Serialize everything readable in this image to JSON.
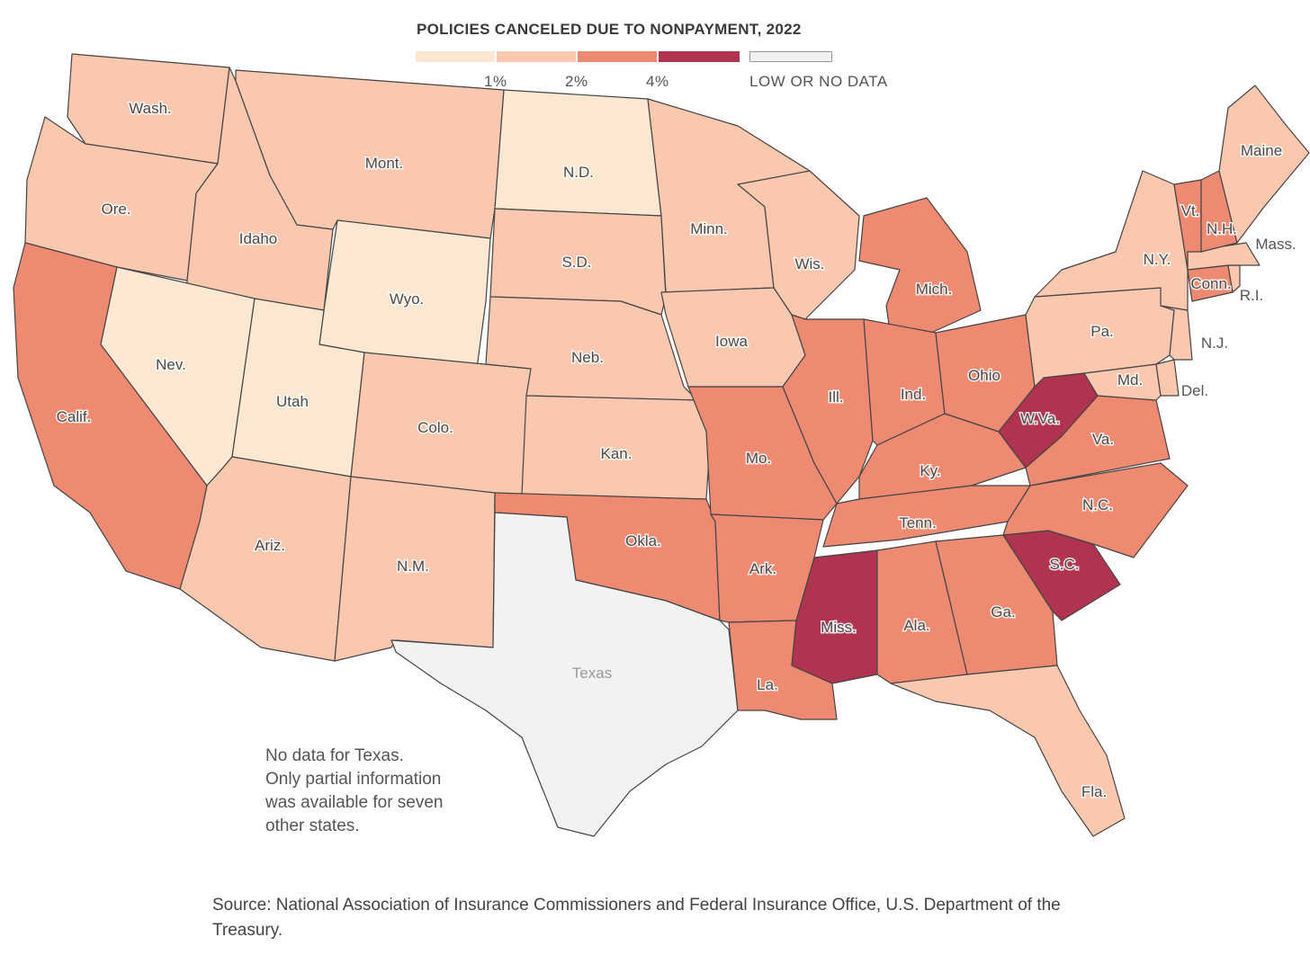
{
  "legend": {
    "title": "POLICIES CANCELED DUE TO NONPAYMENT, 2022",
    "bins": [
      {
        "color": "#fbe7d2"
      },
      {
        "color": "#f9c8ae"
      },
      {
        "color": "#ee8a72"
      },
      {
        "color": "#b0344f"
      }
    ],
    "ticks": [
      "1%",
      "2%",
      "4%"
    ],
    "no_data": {
      "color": "#f2f2f2",
      "label": "LOW OR NO DATA"
    }
  },
  "states": [
    {
      "id": "wash",
      "label": "Wash.",
      "level": 1
    },
    {
      "id": "ore",
      "label": "Ore.",
      "level": 1
    },
    {
      "id": "calif",
      "label": "Calif.",
      "level": 2
    },
    {
      "id": "idaho",
      "label": "Idaho",
      "level": 1
    },
    {
      "id": "nev",
      "label": "Nev.",
      "level": 0
    },
    {
      "id": "mont",
      "label": "Mont.",
      "level": 1
    },
    {
      "id": "wyo",
      "label": "Wyo.",
      "level": 0
    },
    {
      "id": "utah",
      "label": "Utah",
      "level": 0
    },
    {
      "id": "ariz",
      "label": "Ariz.",
      "level": 1
    },
    {
      "id": "colo",
      "label": "Colo.",
      "level": 1
    },
    {
      "id": "nm",
      "label": "N.M.",
      "level": 1
    },
    {
      "id": "nd",
      "label": "N.D.",
      "level": 0
    },
    {
      "id": "sd",
      "label": "S.D.",
      "level": 1
    },
    {
      "id": "neb",
      "label": "Neb.",
      "level": 1
    },
    {
      "id": "kan",
      "label": "Kan.",
      "level": 1
    },
    {
      "id": "okla",
      "label": "Okla.",
      "level": 2
    },
    {
      "id": "texas",
      "label": "Texas",
      "level": -1
    },
    {
      "id": "minn",
      "label": "Minn.",
      "level": 1
    },
    {
      "id": "iowa",
      "label": "Iowa",
      "level": 1
    },
    {
      "id": "mo",
      "label": "Mo.",
      "level": 2
    },
    {
      "id": "ark",
      "label": "Ark.",
      "level": 2
    },
    {
      "id": "la",
      "label": "La.",
      "level": 2
    },
    {
      "id": "wis",
      "label": "Wis.",
      "level": 1
    },
    {
      "id": "ill",
      "label": "Ill.",
      "level": 2
    },
    {
      "id": "mich",
      "label": "Mich.",
      "level": 2
    },
    {
      "id": "ind",
      "label": "Ind.",
      "level": 2
    },
    {
      "id": "ohio",
      "label": "Ohio",
      "level": 2
    },
    {
      "id": "ky",
      "label": "Ky.",
      "level": 2
    },
    {
      "id": "tenn",
      "label": "Tenn.",
      "level": 2
    },
    {
      "id": "miss",
      "label": "Miss.",
      "level": 3
    },
    {
      "id": "ala",
      "label": "Ala.",
      "level": 2
    },
    {
      "id": "ga",
      "label": "Ga.",
      "level": 2
    },
    {
      "id": "fla",
      "label": "Fla.",
      "level": 1
    },
    {
      "id": "sc",
      "label": "S.C.",
      "level": 3
    },
    {
      "id": "nc",
      "label": "N.C.",
      "level": 2
    },
    {
      "id": "va",
      "label": "Va.",
      "level": 2
    },
    {
      "id": "wva",
      "label": "W.Va.",
      "level": 3
    },
    {
      "id": "md",
      "label": "Md.",
      "level": 1
    },
    {
      "id": "del",
      "label": "Del.",
      "level": 1
    },
    {
      "id": "pa",
      "label": "Pa.",
      "level": 1
    },
    {
      "id": "nj",
      "label": "N.J.",
      "level": 1
    },
    {
      "id": "ny",
      "label": "N.Y.",
      "level": 1
    },
    {
      "id": "conn",
      "label": "Conn.",
      "level": 2
    },
    {
      "id": "ri",
      "label": "R.I.",
      "level": 1
    },
    {
      "id": "mass",
      "label": "Mass.",
      "level": 1
    },
    {
      "id": "vt",
      "label": "Vt.",
      "level": 2
    },
    {
      "id": "nh",
      "label": "N.H.",
      "level": 2
    },
    {
      "id": "maine",
      "label": "Maine",
      "level": 1
    }
  ],
  "note": [
    "No data for Texas.",
    "Only partial information",
    "was available for seven",
    "other states."
  ],
  "source": "Source: National Association of Insurance Commissioners and Federal Insurance Office, U.S. Department of the Treasury."
}
